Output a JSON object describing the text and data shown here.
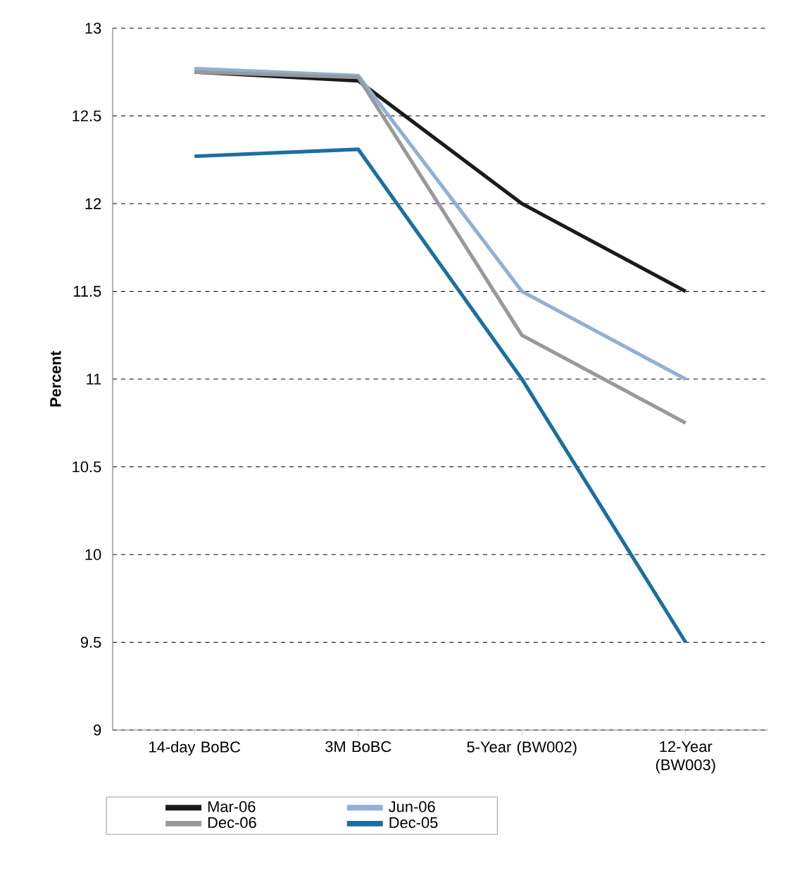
{
  "chart_data": {
    "type": "line",
    "ylabel": "Percent",
    "categories": [
      "14-day BoBC",
      "3M BoBC",
      "5-Year (BW002)",
      "12-Year (BW003)"
    ],
    "series": [
      {
        "name": "Mar-06",
        "color": "#1a1a1a",
        "values": [
          12.75,
          12.7,
          12.0,
          11.5
        ]
      },
      {
        "name": "Jun-06",
        "color": "#8fb0d8",
        "values": [
          12.77,
          12.73,
          11.5,
          11.0
        ]
      },
      {
        "name": "Dec-06",
        "color": "#999999",
        "values": [
          12.75,
          12.72,
          11.25,
          10.75
        ]
      },
      {
        "name": "Dec-05",
        "color": "#1a6fa0",
        "values": [
          12.27,
          12.31,
          11.0,
          9.5
        ]
      }
    ],
    "ylim": [
      9,
      13
    ],
    "yticks": [
      9,
      9.5,
      10,
      10.5,
      11,
      11.5,
      12,
      12.5,
      13
    ],
    "grid": "y",
    "legend": "bottom",
    "marker": "none",
    "line_style": "solid"
  }
}
